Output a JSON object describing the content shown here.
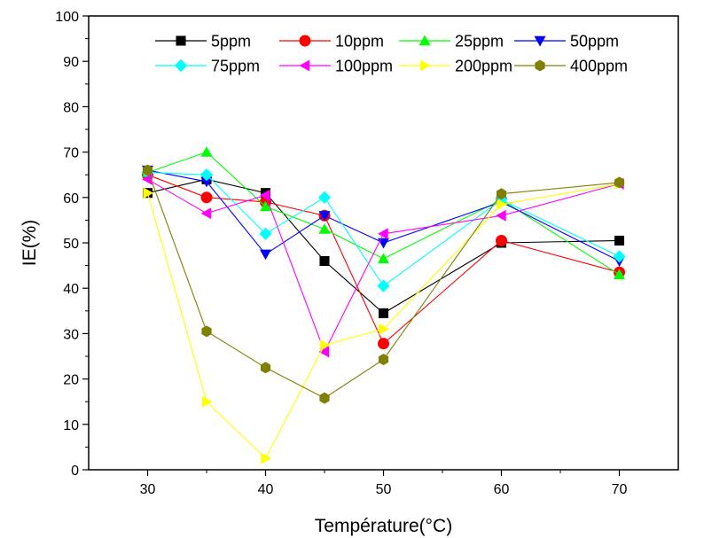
{
  "chart_data": {
    "type": "line",
    "title": "",
    "xlabel": "Température(°C)",
    "ylabel": "IE(%)",
    "xlim": [
      25,
      75
    ],
    "ylim": [
      0,
      100
    ],
    "x": [
      30,
      35,
      40,
      45,
      50,
      60,
      70
    ],
    "x_ticks": [
      30,
      40,
      50,
      60,
      70
    ],
    "y_ticks": [
      0,
      10,
      20,
      30,
      40,
      50,
      60,
      70,
      80,
      90,
      100
    ],
    "grid": false,
    "legend_position": "top",
    "series": [
      {
        "name": "5ppm",
        "color": "#000000",
        "marker": "square",
        "values": [
          61.0,
          64.0,
          61.0,
          46.0,
          34.5,
          50.0,
          50.5
        ]
      },
      {
        "name": "10ppm",
        "color": "#ff0000",
        "marker": "circle",
        "values": [
          65.0,
          60.0,
          59.0,
          56.0,
          27.8,
          50.5,
          43.5
        ]
      },
      {
        "name": "25ppm",
        "color": "#00ff00",
        "marker": "triangle-up",
        "values": [
          65.5,
          70.0,
          58.0,
          53.0,
          46.5,
          59.5,
          43.0
        ]
      },
      {
        "name": "50ppm",
        "color": "#0000ff",
        "marker": "triangle-down",
        "values": [
          66.0,
          63.5,
          47.5,
          56.0,
          50.0,
          59.0,
          46.0
        ]
      },
      {
        "name": "75ppm",
        "color": "#00ffff",
        "marker": "diamond",
        "values": [
          65.5,
          65.0,
          52.0,
          60.0,
          40.5,
          59.5,
          47.0
        ]
      },
      {
        "name": "100ppm",
        "color": "#ff00ff",
        "marker": "triangle-left",
        "values": [
          64.0,
          56.5,
          60.5,
          26.0,
          52.0,
          56.0,
          63.0
        ]
      },
      {
        "name": "200ppm",
        "color": "#ffff00",
        "marker": "triangle-right",
        "values": [
          61.0,
          15.0,
          2.5,
          27.5,
          31.0,
          58.5,
          63.0
        ]
      },
      {
        "name": "400ppm",
        "color": "#808000",
        "marker": "hexagon",
        "values": [
          66.0,
          30.5,
          22.5,
          15.8,
          24.3,
          60.8,
          63.3
        ]
      }
    ]
  }
}
